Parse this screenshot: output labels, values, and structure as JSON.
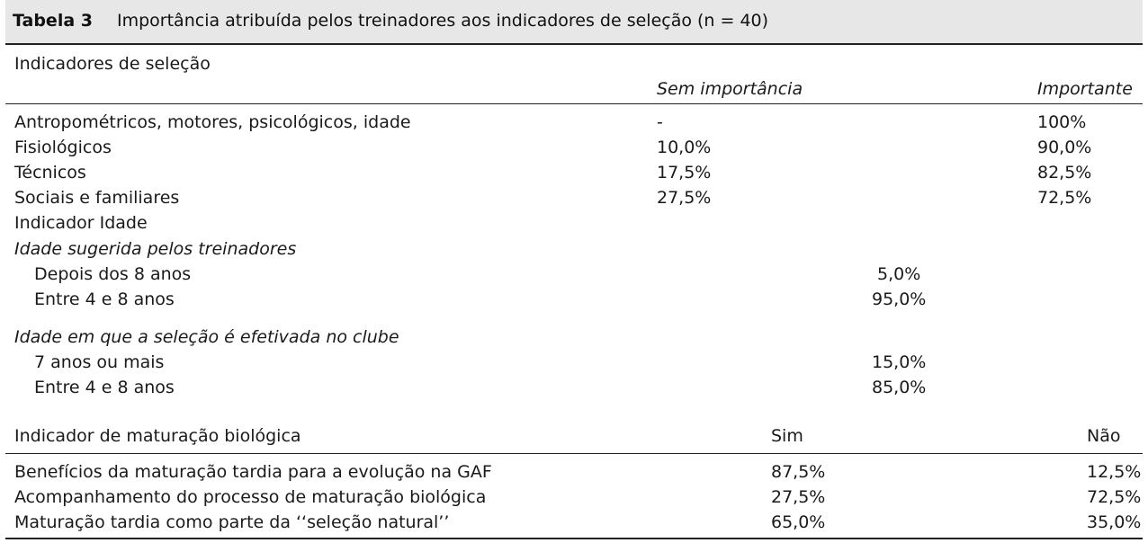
{
  "table": {
    "label": "Tabela 3",
    "title": "Importância atribuída pelos treinadores aos indicadores de seleção (n = 40)"
  },
  "selection": {
    "header": "Indicadores de seleção",
    "col_a": "Sem importância",
    "col_b": "Importante",
    "rows": [
      {
        "label": "Antropométricos, motores, psicológicos, idade",
        "a": "-",
        "b": "100%"
      },
      {
        "label": "Fisiológicos",
        "a": "10,0%",
        "b": "90,0%"
      },
      {
        "label": "Técnicos",
        "a": "17,5%",
        "b": "82,5%"
      },
      {
        "label": "Sociais e familiares",
        "a": "27,5%",
        "b": "72,5%"
      }
    ]
  },
  "age": {
    "header": "Indicador Idade",
    "suggested": {
      "heading": "Idade sugerida pelos treinadores",
      "rows": [
        {
          "label": "Depois dos 8 anos",
          "value": "5,0%"
        },
        {
          "label": "Entre 4 e 8 anos",
          "value": "95,0%"
        }
      ]
    },
    "club": {
      "heading": "Idade em que a seleção é efetivada no clube",
      "rows": [
        {
          "label": "7 anos ou mais",
          "value": "15,0%"
        },
        {
          "label": "Entre 4 e 8 anos",
          "value": "85,0%"
        }
      ]
    }
  },
  "maturation": {
    "header": "Indicador de maturação biológica",
    "col_yes": "Sim",
    "col_no": "Não",
    "rows": [
      {
        "label": "Benefícios da maturação tardia para a evolução na GAF",
        "yes": "87,5%",
        "no": "12,5%"
      },
      {
        "label": "Acompanhamento do processo de maturação biológica",
        "yes": "27,5%",
        "no": "72,5%"
      },
      {
        "label": "Maturação tardia como parte da ‘‘seleção natural’’",
        "yes": "65,0%",
        "no": "35,0%"
      }
    ]
  }
}
